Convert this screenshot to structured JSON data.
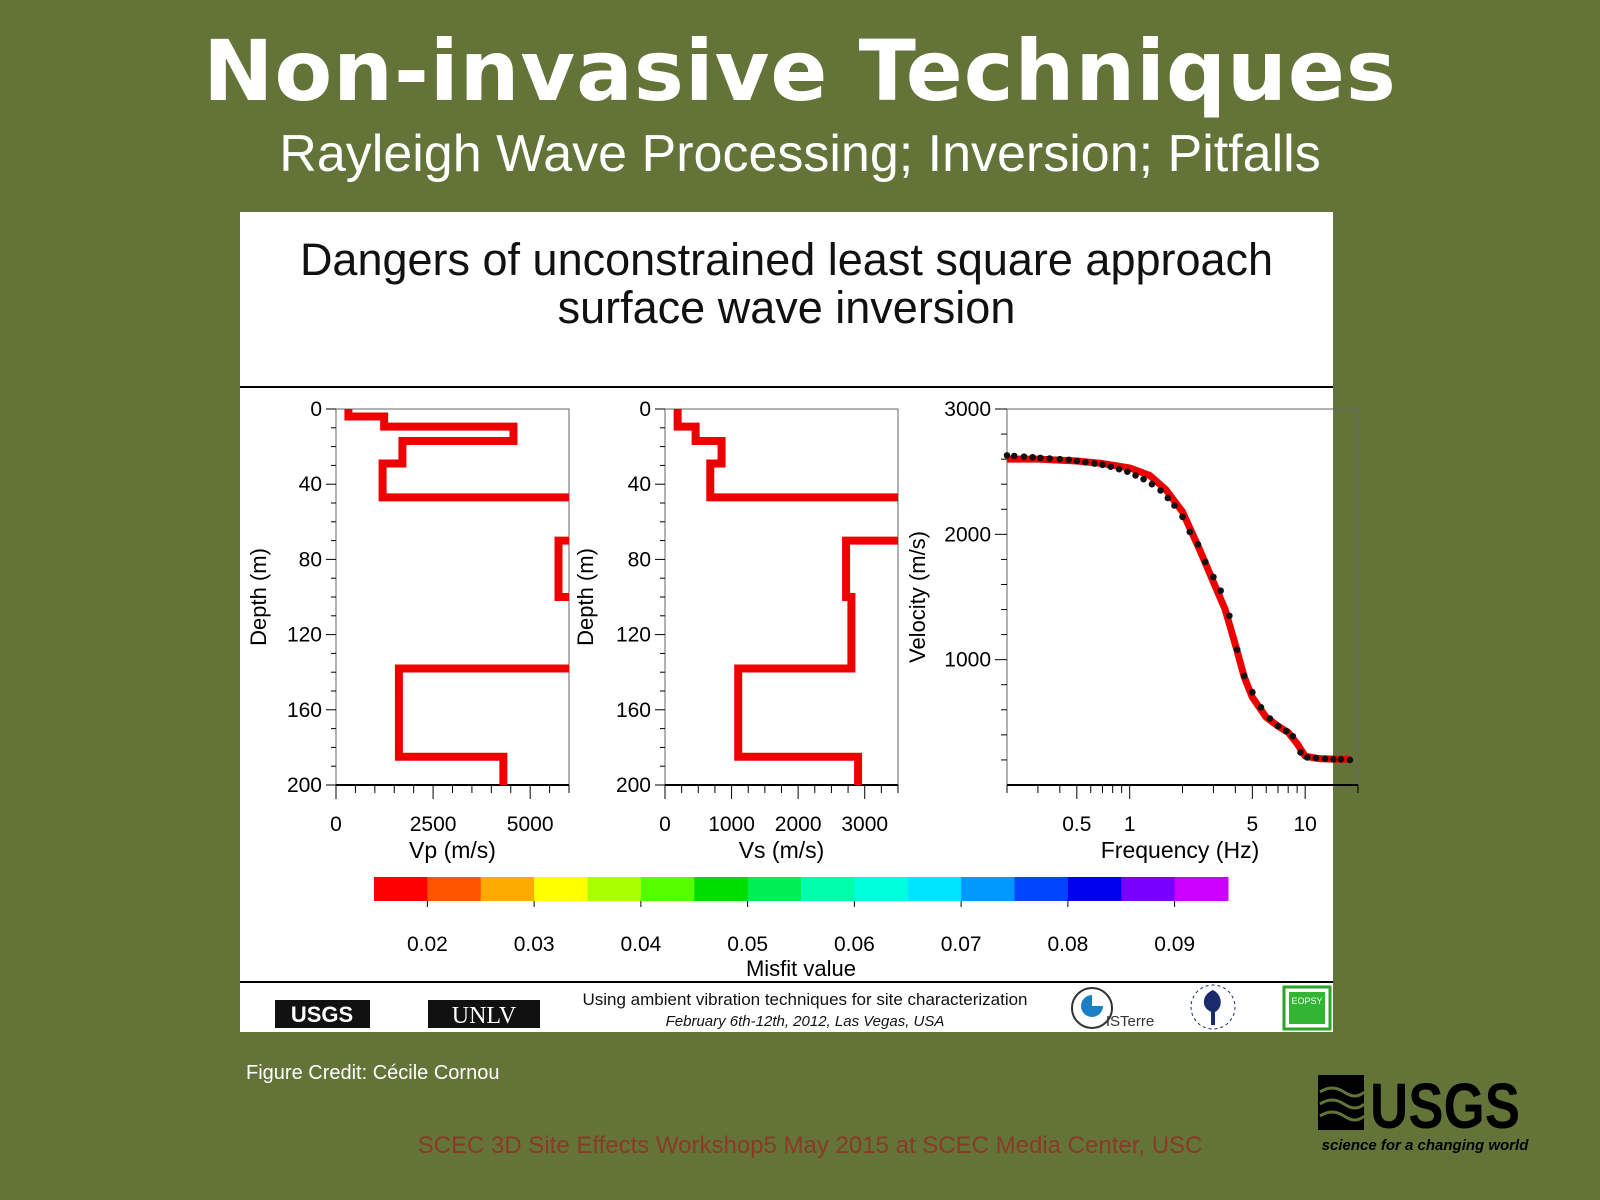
{
  "slide": {
    "title": "Non-invasive Techniques",
    "subtitle": "Rayleigh Wave Processing; Inversion; Pitfalls",
    "figure_title_line1": "Dangers of unconstrained least square approach",
    "figure_title_line2": "surface wave inversion",
    "credit": "Figure Credit: Cécile Cornou",
    "footer": "SCEC 3D Site Effects Workshop5 May 2015 at SCEC Media Center, USC",
    "banner_text": "Using ambient vibration techniques for site characterization",
    "banner_date": "February 6th-12th, 2012, Las Vegas, USA",
    "logos": {
      "usgs": "USGS",
      "usgs_tagline": "science for a changing world",
      "unlv": "UNLV",
      "isterre": "ISTerre",
      "eopsy": "EOPSY"
    },
    "colors": {
      "background": "#647338",
      "profile": "#ee0000",
      "footer_text": "#8a3a27"
    }
  },
  "chart_data": [
    {
      "type": "line",
      "name": "vp-profile",
      "xlabel": "Vp (m/s)",
      "ylabel": "Depth (m)",
      "xlim": [
        0,
        6000
      ],
      "ylim": [
        0,
        200
      ],
      "xticks": [
        0,
        2500,
        5000
      ],
      "yticks": [
        0,
        40,
        80,
        120,
        160,
        200
      ],
      "layers": [
        {
          "top": 0,
          "bottom": 4,
          "v": 320
        },
        {
          "top": 4,
          "bottom": 9.4,
          "v": 1240
        },
        {
          "top": 9.4,
          "bottom": 17,
          "v": 4570
        },
        {
          "top": 17,
          "bottom": 29,
          "v": 1710
        },
        {
          "top": 29,
          "bottom": 47,
          "v": 1200
        },
        {
          "top": 47,
          "bottom": 70,
          "v": 7000
        },
        {
          "top": 70,
          "bottom": 100,
          "v": 5730
        },
        {
          "top": 100,
          "bottom": 138,
          "v": 7000
        },
        {
          "top": 138,
          "bottom": 185,
          "v": 1620
        },
        {
          "top": 185,
          "bottom": 200,
          "v": 4310
        }
      ]
    },
    {
      "type": "line",
      "name": "vs-profile",
      "xlabel": "Vs (m/s)",
      "ylabel": "Depth (m)",
      "xlim": [
        0,
        3500
      ],
      "ylim": [
        0,
        200
      ],
      "xticks": [
        0,
        1000,
        2000,
        3000
      ],
      "yticks": [
        0,
        40,
        80,
        120,
        160,
        200
      ],
      "layers": [
        {
          "top": 0,
          "bottom": 9.4,
          "v": 190
        },
        {
          "top": 9.4,
          "bottom": 17,
          "v": 460
        },
        {
          "top": 17,
          "bottom": 29,
          "v": 850
        },
        {
          "top": 29,
          "bottom": 47,
          "v": 680
        },
        {
          "top": 47,
          "bottom": 70,
          "v": 4000
        },
        {
          "top": 70,
          "bottom": 100,
          "v": 2720
        },
        {
          "top": 100,
          "bottom": 138,
          "v": 2800
        },
        {
          "top": 138,
          "bottom": 185,
          "v": 1100
        },
        {
          "top": 185,
          "bottom": 200,
          "v": 2900
        }
      ]
    },
    {
      "type": "scatter",
      "name": "dispersion-curve",
      "xlabel": "Frequency (Hz)",
      "ylabel": "Velocity (m/s)",
      "xscale": "log",
      "xlim": [
        0.2,
        20
      ],
      "ylim": [
        0,
        3000
      ],
      "xticks": [
        0.5,
        1,
        5,
        10
      ],
      "yticks": [
        1000,
        2000,
        3000
      ],
      "series": [
        {
          "name": "observed",
          "style": "black dots",
          "x": [
            0.2,
            0.22,
            0.25,
            0.28,
            0.31,
            0.35,
            0.4,
            0.45,
            0.5,
            0.56,
            0.63,
            0.7,
            0.78,
            0.87,
            0.97,
            1.08,
            1.2,
            1.34,
            1.5,
            1.65,
            1.8,
            2.0,
            2.2,
            2.45,
            2.7,
            3.0,
            3.3,
            3.7,
            4.1,
            4.5,
            5.0,
            5.6,
            6.3,
            7.0,
            7.8,
            8.5,
            9.4,
            10.3,
            11.5,
            13,
            14.5,
            16,
            18
          ],
          "y": [
            2630,
            2625,
            2620,
            2615,
            2610,
            2605,
            2600,
            2595,
            2585,
            2575,
            2565,
            2555,
            2540,
            2520,
            2500,
            2470,
            2440,
            2400,
            2350,
            2290,
            2230,
            2140,
            2020,
            1920,
            1780,
            1660,
            1550,
            1350,
            1080,
            870,
            740,
            620,
            530,
            470,
            430,
            390,
            260,
            220,
            215,
            210,
            205,
            205,
            200
          ]
        },
        {
          "name": "model",
          "style": "red line",
          "x": [
            0.2,
            0.3,
            0.5,
            0.7,
            1.0,
            1.3,
            1.6,
            2.0,
            2.5,
            3.0,
            3.5,
            4.0,
            4.5,
            5.0,
            6.0,
            7.0,
            8.0,
            9.0,
            10,
            12,
            15,
            18
          ],
          "y": [
            2600,
            2600,
            2585,
            2565,
            2530,
            2470,
            2360,
            2180,
            1880,
            1620,
            1400,
            1120,
            860,
            700,
            540,
            470,
            420,
            330,
            230,
            210,
            205,
            205
          ]
        }
      ]
    },
    {
      "type": "colorbar",
      "name": "misfit-colorbar",
      "label": "Misfit value",
      "range": [
        0.015,
        0.095
      ],
      "ticks": [
        "0.02",
        "0.03",
        "0.04",
        "0.05",
        "0.06",
        "0.07",
        "0.08",
        "0.09"
      ],
      "colors": [
        "#ff0000",
        "#ff5500",
        "#ffaa00",
        "#ffff00",
        "#aaff00",
        "#55ff00",
        "#00dd00",
        "#00ee55",
        "#00ffaa",
        "#00ffdd",
        "#00e5ff",
        "#0099ff",
        "#0044ff",
        "#0000ee",
        "#7700ff",
        "#cc00ff",
        "#ff22cc"
      ]
    }
  ]
}
